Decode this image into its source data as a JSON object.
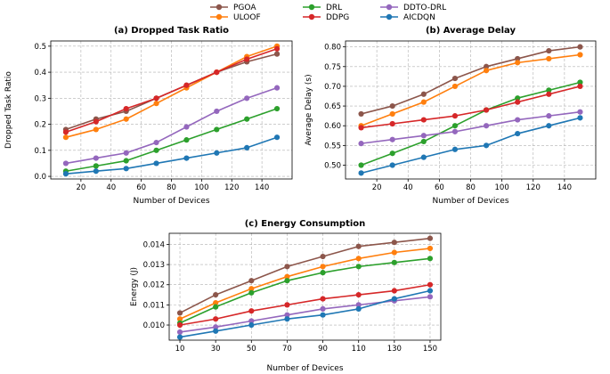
{
  "legend": [
    {
      "name": "PGOA",
      "color": "#8c564b"
    },
    {
      "name": "ULOOF",
      "color": "#ff7f0e"
    },
    {
      "name": "DRL",
      "color": "#2ca02c"
    },
    {
      "name": "DDPG",
      "color": "#d62728"
    },
    {
      "name": "DDTO-DRL",
      "color": "#9467bd"
    },
    {
      "name": "AICDQN",
      "color": "#1f77b4"
    }
  ],
  "chart_data": [
    {
      "type": "line",
      "title": "(a) Dropped Task Ratio",
      "xlabel": "Number of Devices",
      "ylabel": "Dropped Task Ratio",
      "x": [
        10,
        30,
        50,
        70,
        90,
        110,
        130,
        150
      ],
      "xlim": [
        0,
        160
      ],
      "ylim": [
        -0.01,
        0.52
      ],
      "xticks": [
        20,
        40,
        60,
        80,
        100,
        120,
        140
      ],
      "xtick_labels": [
        "20",
        "40",
        "60",
        "80",
        "100",
        "120",
        "140"
      ],
      "yticks": [
        0.0,
        0.1,
        0.2,
        0.3,
        0.4,
        0.5
      ],
      "ytick_labels": [
        "0.0",
        "0.1",
        "0.2",
        "0.3",
        "0.4",
        "0.5"
      ],
      "series": [
        {
          "name": "PGOA",
          "color": "#8c564b",
          "values": [
            0.18,
            0.22,
            0.25,
            0.3,
            0.35,
            0.4,
            0.44,
            0.47
          ]
        },
        {
          "name": "ULOOF",
          "color": "#ff7f0e",
          "values": [
            0.15,
            0.18,
            0.22,
            0.28,
            0.34,
            0.4,
            0.46,
            0.5
          ]
        },
        {
          "name": "DRL",
          "color": "#2ca02c",
          "values": [
            0.02,
            0.04,
            0.06,
            0.1,
            0.14,
            0.18,
            0.22,
            0.26
          ]
        },
        {
          "name": "DDPG",
          "color": "#d62728",
          "values": [
            0.17,
            0.21,
            0.26,
            0.3,
            0.35,
            0.4,
            0.45,
            0.49
          ]
        },
        {
          "name": "DDTO-DRL",
          "color": "#9467bd",
          "values": [
            0.05,
            0.07,
            0.09,
            0.13,
            0.19,
            0.25,
            0.3,
            0.34
          ]
        },
        {
          "name": "AICDQN",
          "color": "#1f77b4",
          "values": [
            0.01,
            0.02,
            0.03,
            0.05,
            0.07,
            0.09,
            0.11,
            0.15
          ]
        }
      ]
    },
    {
      "type": "line",
      "title": "(b) Average Delay",
      "xlabel": "Number of Devices",
      "ylabel": "Average Delay (s)",
      "x": [
        10,
        30,
        50,
        70,
        90,
        110,
        130,
        150
      ],
      "xlim": [
        0,
        160
      ],
      "ylim": [
        0.465,
        0.815
      ],
      "xticks": [
        20,
        40,
        60,
        80,
        100,
        120,
        140
      ],
      "xtick_labels": [
        "20",
        "40",
        "60",
        "80",
        "100",
        "120",
        "140"
      ],
      "yticks": [
        0.5,
        0.55,
        0.6,
        0.65,
        0.7,
        0.75,
        0.8
      ],
      "ytick_labels": [
        "0.50",
        "0.55",
        "0.60",
        "0.65",
        "0.70",
        "0.75",
        "0.80"
      ],
      "series": [
        {
          "name": "PGOA",
          "color": "#8c564b",
          "values": [
            0.63,
            0.65,
            0.68,
            0.72,
            0.75,
            0.77,
            0.79,
            0.8
          ]
        },
        {
          "name": "ULOOF",
          "color": "#ff7f0e",
          "values": [
            0.6,
            0.63,
            0.66,
            0.7,
            0.74,
            0.76,
            0.77,
            0.78
          ]
        },
        {
          "name": "DRL",
          "color": "#2ca02c",
          "values": [
            0.5,
            0.53,
            0.56,
            0.6,
            0.64,
            0.67,
            0.69,
            0.71
          ]
        },
        {
          "name": "DDPG",
          "color": "#d62728",
          "values": [
            0.595,
            0.605,
            0.615,
            0.625,
            0.64,
            0.66,
            0.68,
            0.7
          ]
        },
        {
          "name": "DDTO-DRL",
          "color": "#9467bd",
          "values": [
            0.555,
            0.565,
            0.575,
            0.585,
            0.6,
            0.615,
            0.625,
            0.635
          ]
        },
        {
          "name": "AICDQN",
          "color": "#1f77b4",
          "values": [
            0.48,
            0.5,
            0.52,
            0.54,
            0.55,
            0.58,
            0.6,
            0.62
          ]
        }
      ]
    },
    {
      "type": "line",
      "title": "(c) Energy Consumption",
      "xlabel": "Number of Devices",
      "ylabel": "Energy (J)",
      "x": [
        10,
        30,
        50,
        70,
        90,
        110,
        130,
        150
      ],
      "xlim": [
        4,
        156
      ],
      "ylim": [
        0.00925,
        0.01455
      ],
      "xticks": [
        10,
        30,
        50,
        70,
        90,
        110,
        130,
        150
      ],
      "xtick_labels": [
        "10",
        "30",
        "50",
        "70",
        "90",
        "110",
        "130",
        "150"
      ],
      "yticks": [
        0.01,
        0.011,
        0.012,
        0.013,
        0.014
      ],
      "ytick_labels": [
        "0.010",
        "0.011",
        "0.012",
        "0.013",
        "0.014"
      ],
      "series": [
        {
          "name": "PGOA",
          "color": "#8c564b",
          "values": [
            0.0106,
            0.0115,
            0.0122,
            0.0129,
            0.0134,
            0.0139,
            0.0141,
            0.0143
          ]
        },
        {
          "name": "ULOOF",
          "color": "#ff7f0e",
          "values": [
            0.0103,
            0.0111,
            0.0118,
            0.0124,
            0.0129,
            0.0133,
            0.0136,
            0.0138
          ]
        },
        {
          "name": "DRL",
          "color": "#2ca02c",
          "values": [
            0.0101,
            0.0109,
            0.0116,
            0.0122,
            0.0126,
            0.0129,
            0.0131,
            0.0133
          ]
        },
        {
          "name": "DDPG",
          "color": "#d62728",
          "values": [
            0.01,
            0.0103,
            0.0107,
            0.011,
            0.0113,
            0.0115,
            0.0117,
            0.012
          ]
        },
        {
          "name": "DDTO-DRL",
          "color": "#9467bd",
          "values": [
            0.00965,
            0.0099,
            0.0102,
            0.0105,
            0.0108,
            0.011,
            0.0112,
            0.0114
          ]
        },
        {
          "name": "AICDQN",
          "color": "#1f77b4",
          "values": [
            0.0094,
            0.0097,
            0.01,
            0.0103,
            0.0105,
            0.0108,
            0.0113,
            0.0117
          ]
        }
      ]
    }
  ]
}
